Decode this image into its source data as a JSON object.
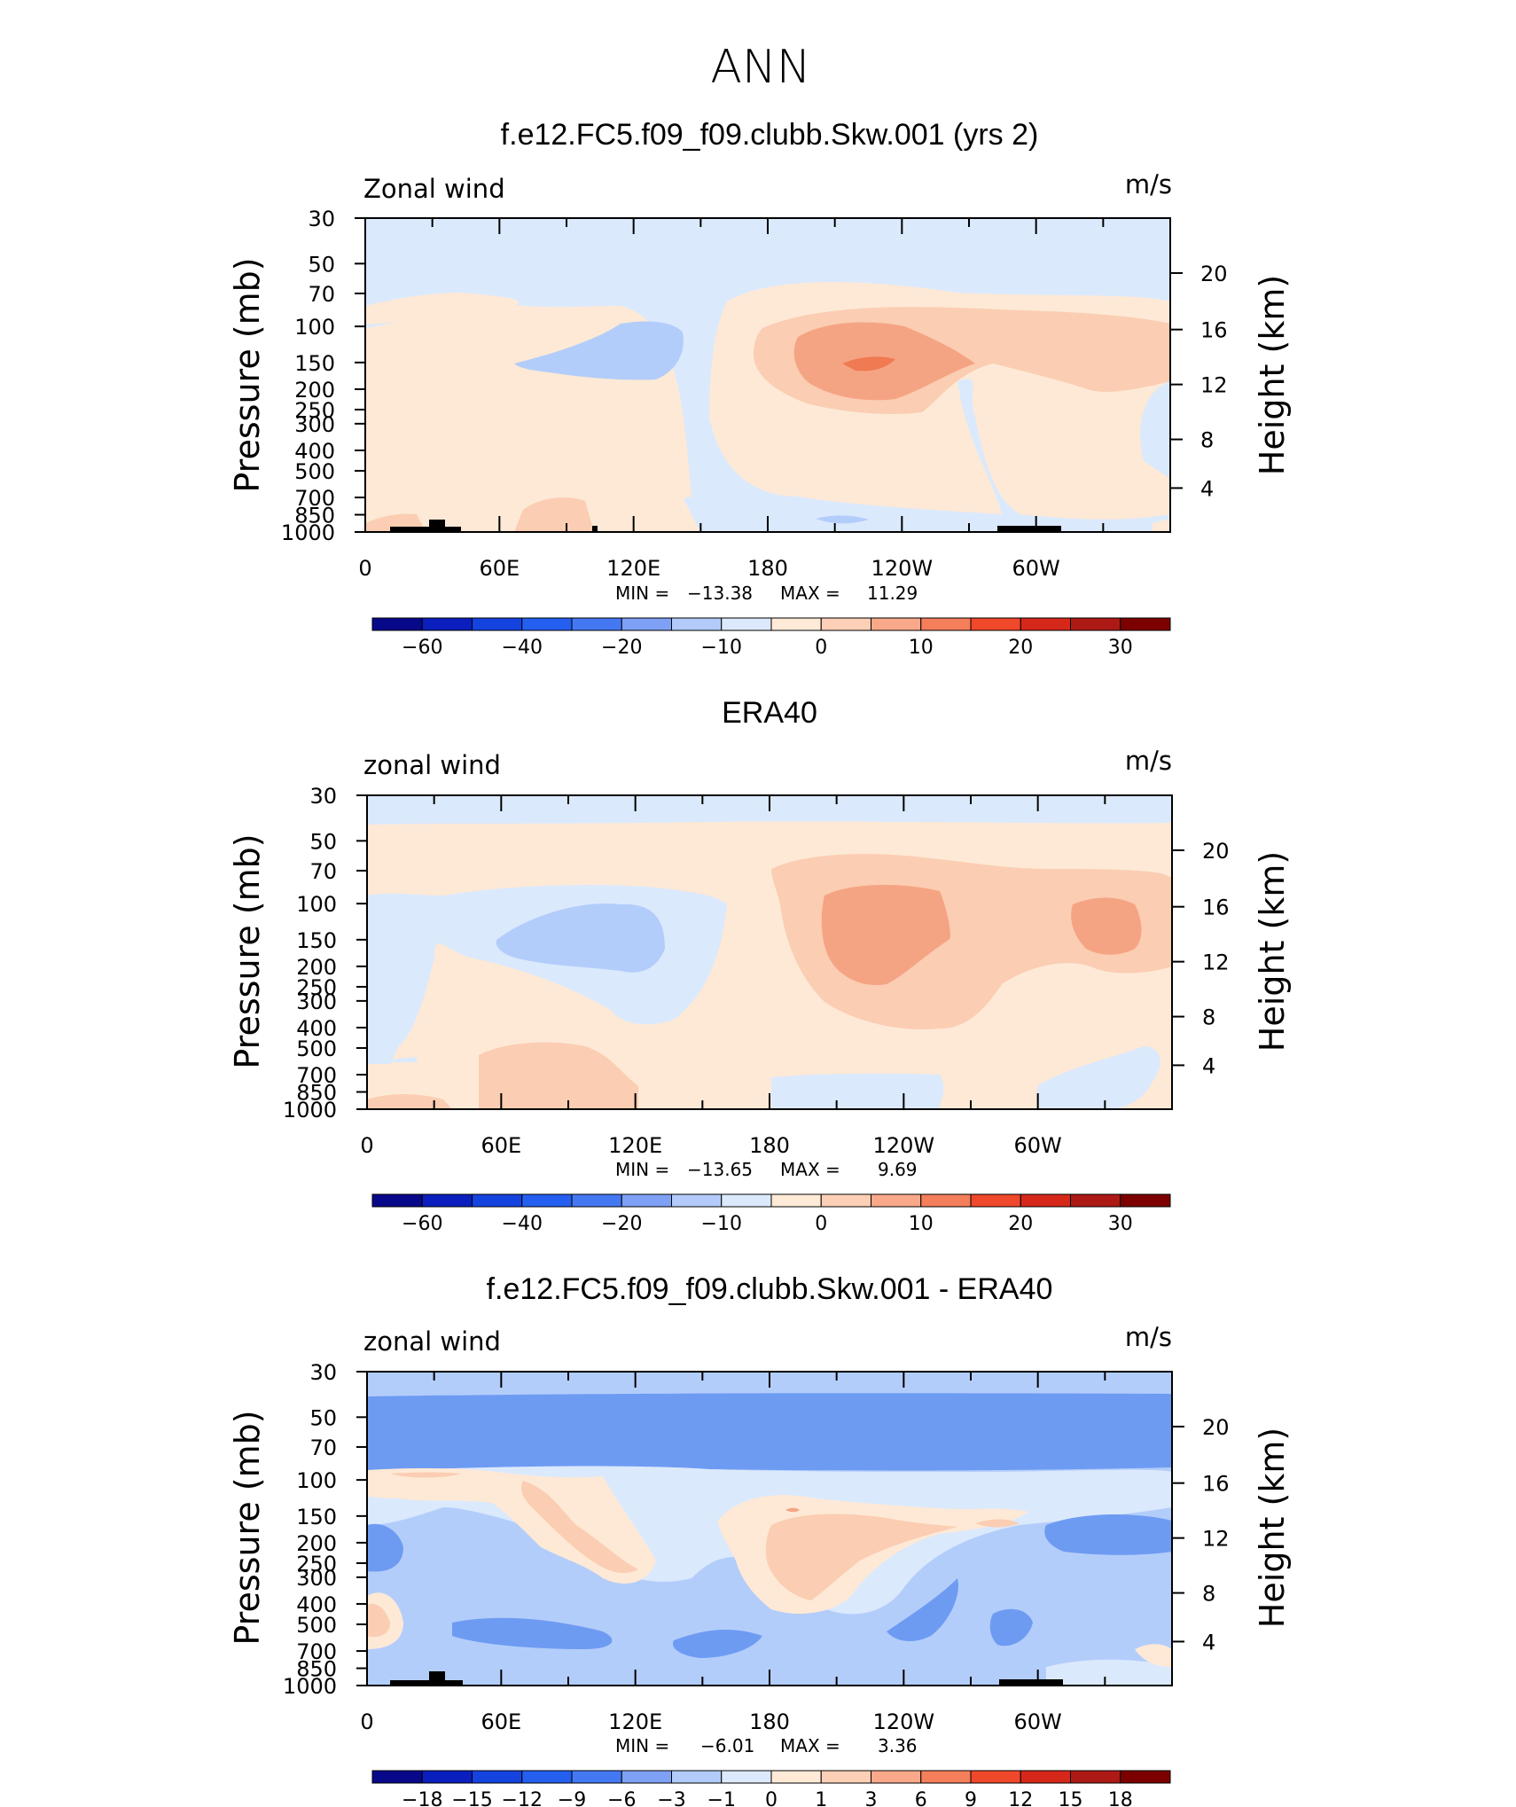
{
  "figure": {
    "title": "ANN",
    "palette": {
      "deep_blue": "#1a3a9a",
      "blue": "#2f6ee8",
      "mid_blue": "#6e9bf2",
      "light_blue": "#b3cdfb",
      "pale_blue": "#dbe9fd",
      "pale_orange": "#fde9d6",
      "light_orange": "#fbcdb2",
      "orange": "#f5a483",
      "dark_orange": "#f07a52",
      "red": "#d7301f",
      "dark_red": "#7f0000"
    }
  },
  "chart_data": [
    {
      "type": "heatmap",
      "title": "f.e12.FC5.f09_f09.clubb.Skw.001 (yrs 2)",
      "variable_label": "Zonal wind",
      "units_label": "m/s",
      "ylabel": "Pressure (mb)",
      "ylabel_right": "Height (km)",
      "x_ticks": [
        "0",
        "60E",
        "120E",
        "180",
        "120W",
        "60W"
      ],
      "x_range_deg": [
        0,
        360
      ],
      "y_ticks": [
        "30",
        "50",
        "70",
        "100",
        "150",
        "200",
        "250",
        "300",
        "400",
        "500",
        "700",
        "850",
        "1000"
      ],
      "y_ticks_right": [
        "20",
        "16",
        "12",
        "8",
        "4"
      ],
      "stats": {
        "min_label": "MIN =",
        "min": "−13.38",
        "max_label": "MAX =",
        "max": "11.29"
      },
      "colorbar": {
        "colors": [
          "#08088a",
          "#0a1fbe",
          "#1443e0",
          "#245ff0",
          "#4478f3",
          "#7ea1f5",
          "#b2cbfa",
          "#dce9fd",
          "#feead7",
          "#fccfb6",
          "#f9a98a",
          "#f57e5b",
          "#f0482a",
          "#d6281a",
          "#ad1a16",
          "#7d0000"
        ],
        "labels": [
          "−60",
          "−40",
          "−20",
          "−10",
          "0",
          "10",
          "20",
          "30"
        ]
      }
    },
    {
      "type": "heatmap",
      "title": "ERA40",
      "variable_label": "zonal wind",
      "units_label": "m/s",
      "ylabel": "Pressure (mb)",
      "ylabel_right": "Height (km)",
      "x_ticks": [
        "0",
        "60E",
        "120E",
        "180",
        "120W",
        "60W"
      ],
      "x_range_deg": [
        0,
        360
      ],
      "y_ticks": [
        "30",
        "50",
        "70",
        "100",
        "150",
        "200",
        "250",
        "300",
        "400",
        "500",
        "700",
        "850",
        "1000"
      ],
      "y_ticks_right": [
        "20",
        "16",
        "12",
        "8",
        "4"
      ],
      "stats": {
        "min_label": "MIN =",
        "min": "−13.65",
        "max_label": "MAX =",
        "max": "9.69"
      },
      "colorbar": {
        "colors": [
          "#08088a",
          "#0a1fbe",
          "#1443e0",
          "#245ff0",
          "#4478f3",
          "#7ea1f5",
          "#b2cbfa",
          "#dce9fd",
          "#feead7",
          "#fccfb6",
          "#f9a98a",
          "#f57e5b",
          "#f0482a",
          "#d6281a",
          "#ad1a16",
          "#7d0000"
        ],
        "labels": [
          "−60",
          "−40",
          "−20",
          "−10",
          "0",
          "10",
          "20",
          "30"
        ]
      }
    },
    {
      "type": "heatmap",
      "title": "f.e12.FC5.f09_f09.clubb.Skw.001 - ERA40",
      "variable_label": "zonal wind",
      "units_label": "m/s",
      "ylabel": "Pressure (mb)",
      "ylabel_right": "Height (km)",
      "x_ticks": [
        "0",
        "60E",
        "120E",
        "180",
        "120W",
        "60W"
      ],
      "x_range_deg": [
        0,
        360
      ],
      "y_ticks": [
        "30",
        "50",
        "70",
        "100",
        "150",
        "200",
        "250",
        "300",
        "400",
        "500",
        "700",
        "850",
        "1000"
      ],
      "y_ticks_right": [
        "20",
        "16",
        "12",
        "8",
        "4"
      ],
      "stats": {
        "min_label": "MIN =",
        "min": "−6.01",
        "max_label": "MAX =",
        "max": "3.36"
      },
      "colorbar": {
        "colors": [
          "#08088a",
          "#0a1fbe",
          "#1443e0",
          "#245ff0",
          "#4478f3",
          "#7ea1f5",
          "#b2cbfa",
          "#dce9fd",
          "#feead7",
          "#fccfb6",
          "#f9a98a",
          "#f57e5b",
          "#f0482a",
          "#d6281a",
          "#ad1a16",
          "#7d0000"
        ],
        "labels": [
          "−18",
          "−15",
          "−12",
          "−9",
          "−6",
          "−3",
          "−1",
          "0",
          "1",
          "3",
          "6",
          "9",
          "12",
          "15",
          "18"
        ]
      }
    }
  ]
}
